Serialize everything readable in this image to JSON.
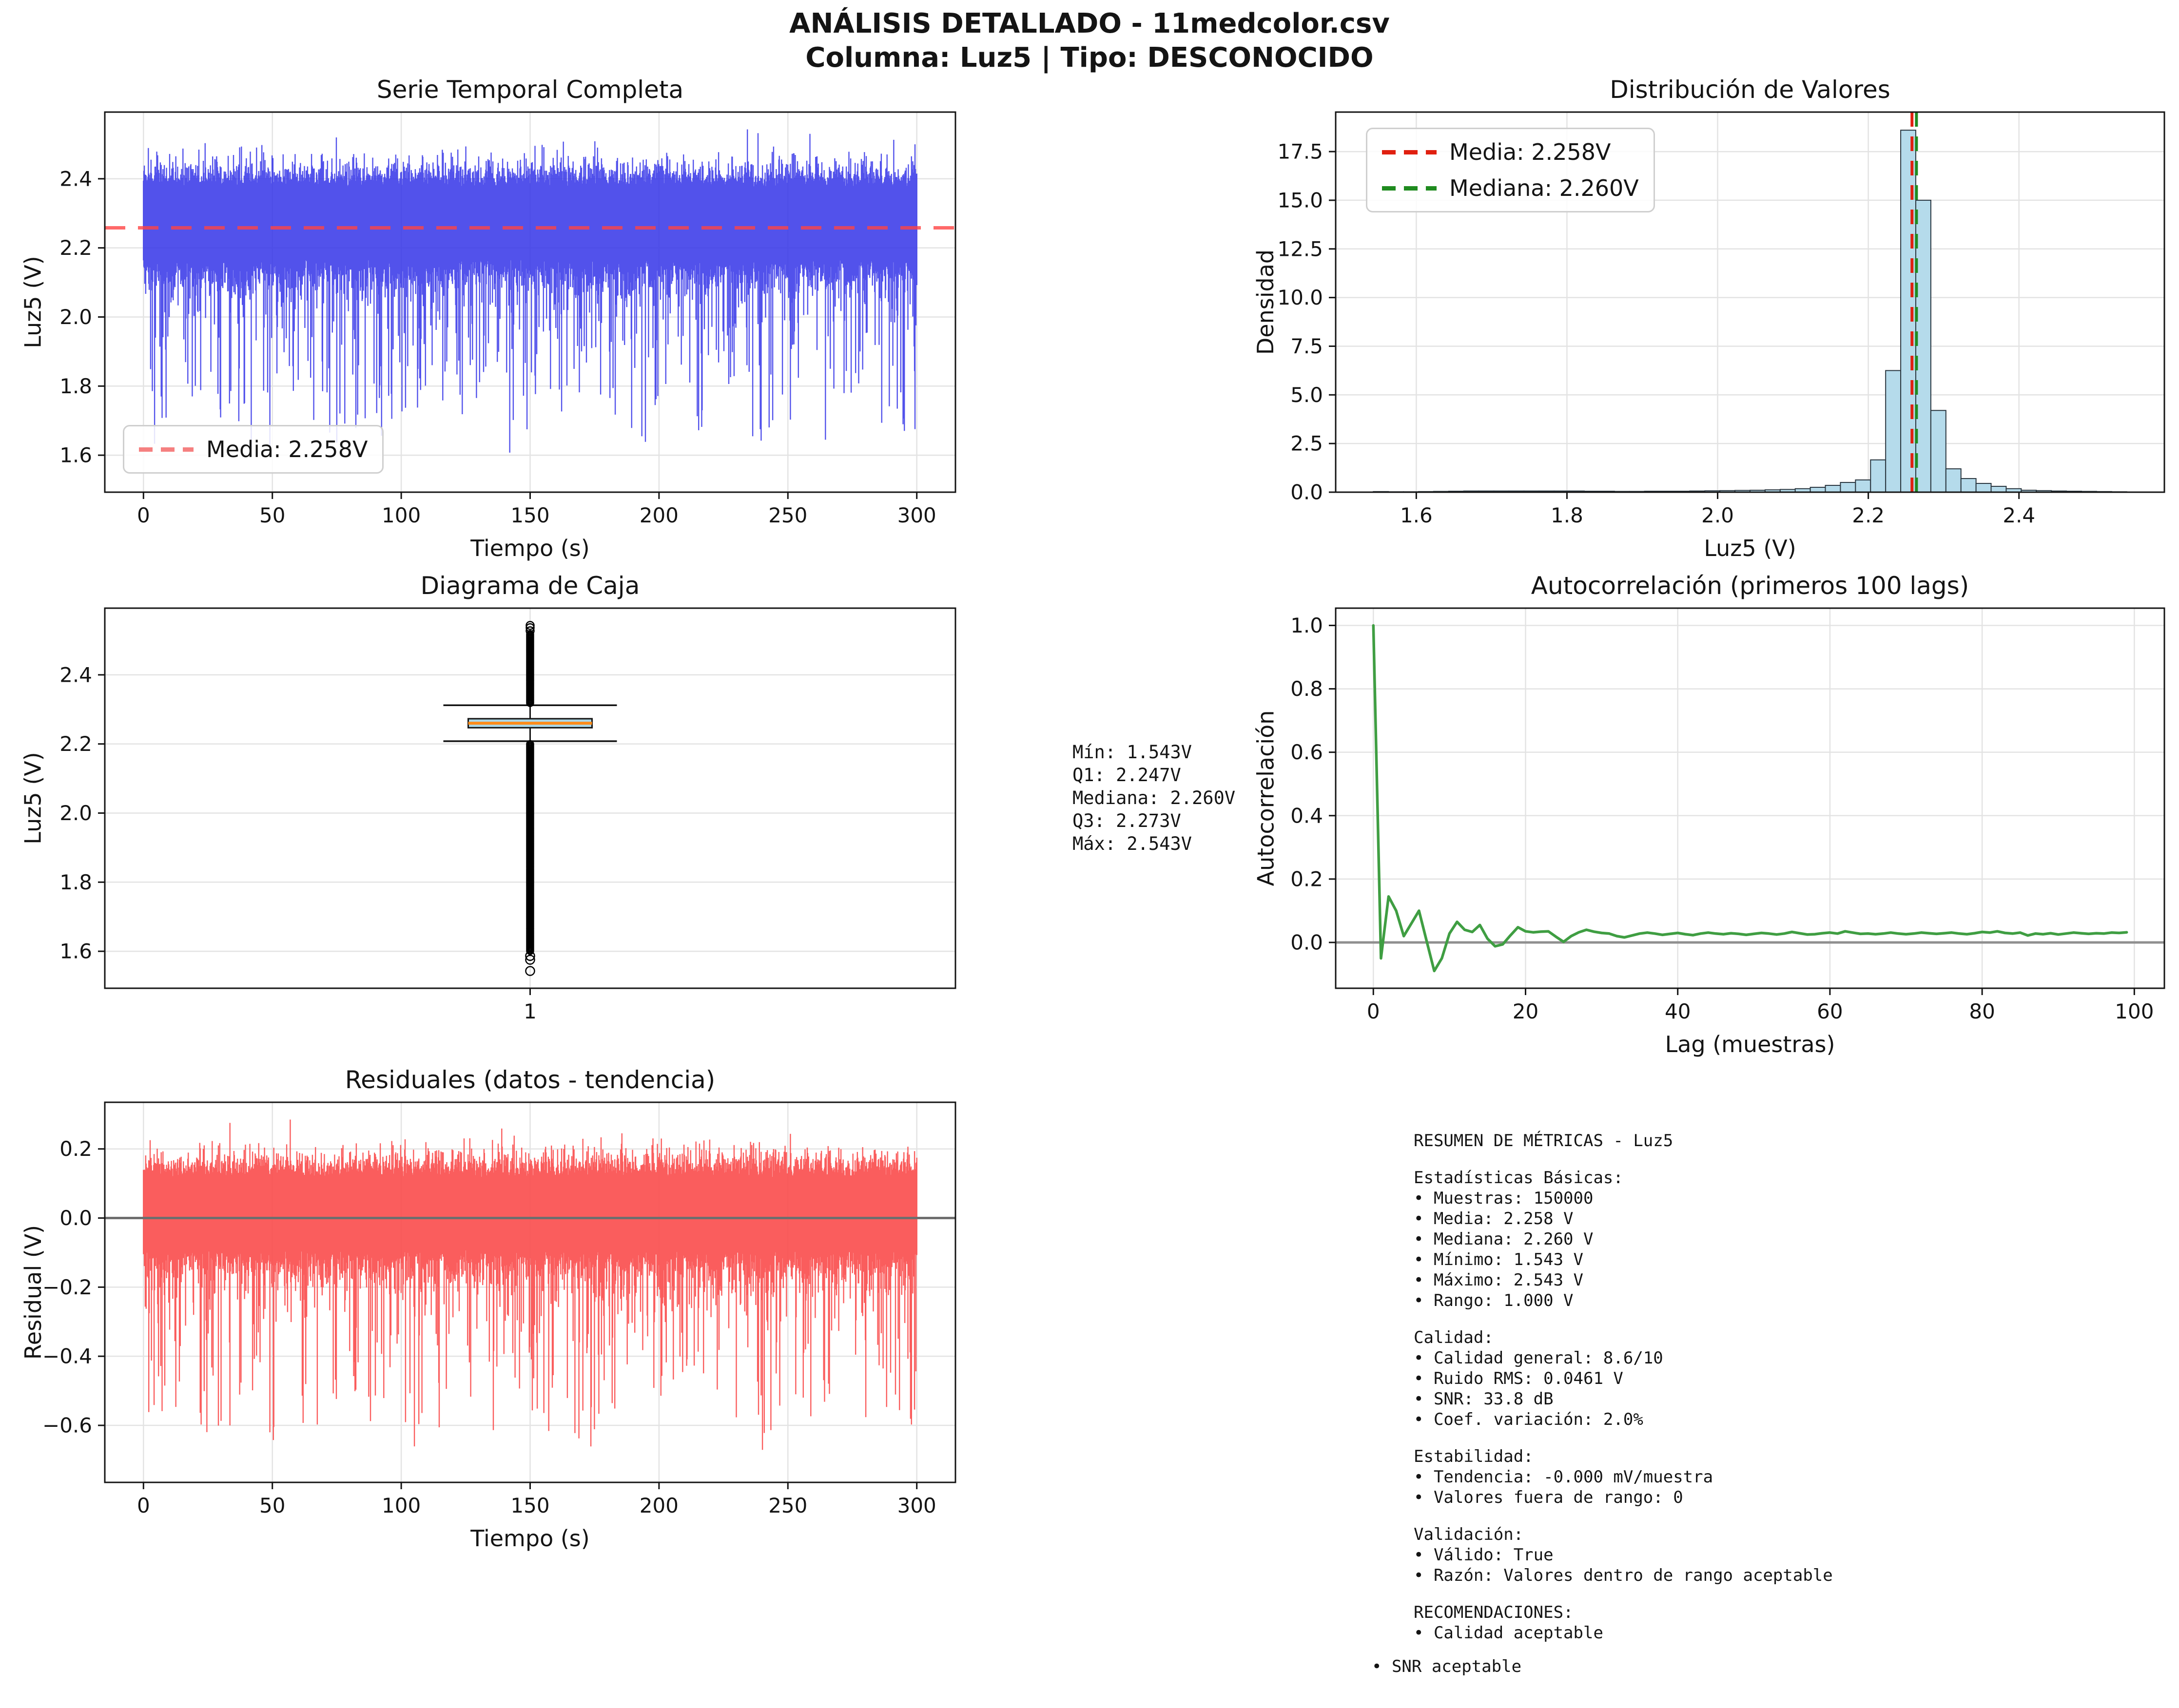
{
  "title": {
    "line1": "ANÁLISIS DETALLADO - 11medcolor.csv",
    "line2": "Columna: Luz5 | Tipo: DESCONOCIDO"
  },
  "stats_box": {
    "lines": [
      "Mín: 1.543V",
      "Q1: 2.247V",
      "Mediana: 2.260V",
      "Q3: 2.273V",
      "Máx: 2.543V"
    ]
  },
  "metrics_box": {
    "lines": [
      "RESUMEN DE MÉTRICAS - Luz5",
      "",
      "Estadísticas Básicas:",
      "• Muestras: 150000",
      "• Media: 2.258 V",
      "• Mediana: 2.260 V",
      "• Mínimo: 1.543 V",
      "• Máximo: 2.543 V",
      "• Rango: 1.000 V",
      "",
      "Calidad:",
      "• Calidad general: 8.6/10",
      "• Ruido RMS: 0.0461 V",
      "• SNR: 33.8 dB",
      "• Coef. variación: 2.0%",
      "",
      "Estabilidad:",
      "• Tendencia: -0.000 mV/muestra",
      "• Valores fuera de rango: 0",
      "",
      "Validación:",
      "• Válido: True",
      "• Razón: Valores dentro de rango aceptable",
      "",
      "RECOMENDACIONES:",
      "• Calidad aceptable"
    ],
    "outdented_line": "• SNR aceptable"
  },
  "colors": {
    "series_blue": "#3434e8",
    "mean_red": "#ff4444",
    "legend_red_soft": "#f58080",
    "hist_fill": "#b5dbeb",
    "hist_edge": "#2b3740",
    "hist_mean_red": "#e02010",
    "hist_median_green": "#1f8b1f",
    "acf_green": "#3f9e42",
    "resid_red": "#fa4b4b",
    "box_fill": "#add8e6",
    "box_median_orange": "#ff8c1a",
    "zero_gray": "#8f8f8f",
    "grid": "#e3e3e3",
    "spine": "#141414"
  },
  "chart_data": [
    {
      "id": "serie_temporal",
      "type": "line",
      "title": "Serie Temporal Completa",
      "xlabel": "Tiempo (s)",
      "ylabel": "Luz5 (V)",
      "xlim": [
        -15,
        315
      ],
      "ylim": [
        1.493,
        2.593
      ],
      "xticks": [
        {
          "v": 0,
          "label": "0"
        },
        {
          "v": 50,
          "label": "50"
        },
        {
          "v": 100,
          "label": "100"
        },
        {
          "v": 150,
          "label": "150"
        },
        {
          "v": 200,
          "label": "200"
        },
        {
          "v": 250,
          "label": "250"
        },
        {
          "v": 300,
          "label": "300"
        }
      ],
      "yticks": [
        {
          "v": 1.6,
          "label": "1.6"
        },
        {
          "v": 1.8,
          "label": "1.8"
        },
        {
          "v": 2.0,
          "label": "2.0"
        },
        {
          "v": 2.2,
          "label": "2.2"
        },
        {
          "v": 2.4,
          "label": "2.4"
        }
      ],
      "grid": true,
      "line_color": "#3434e8",
      "line_opacity": 0.85,
      "mean_line": {
        "value": 2.258,
        "color": "#ff4444",
        "style": "dashed"
      },
      "legend": {
        "position": "lower-left",
        "entries": [
          {
            "swatch": "dashed",
            "color": "#f58080",
            "label": "Media: 2.258V"
          }
        ]
      },
      "signal": {
        "seed": 20240,
        "columns": 1745,
        "t_max": 300,
        "center": 2.272,
        "sigma": 0.046,
        "env": 2.3,
        "spike_down_prob": 0.3,
        "spike_down_base": 0.05,
        "spike_down_max": 0.45,
        "spike_up_prob": 0.06,
        "spike_up_max": 0.09,
        "clip": [
          1.543,
          2.543
        ]
      }
    },
    {
      "id": "distribucion",
      "type": "bar",
      "title": "Distribución de Valores",
      "xlabel": "Luz5 (V)",
      "ylabel": "Densidad",
      "xlim": [
        1.493,
        2.593
      ],
      "ylim": [
        0,
        19.53
      ],
      "xticks": [
        {
          "v": 1.6,
          "label": "1.6"
        },
        {
          "v": 1.8,
          "label": "1.8"
        },
        {
          "v": 2.0,
          "label": "2.0"
        },
        {
          "v": 2.2,
          "label": "2.2"
        },
        {
          "v": 2.4,
          "label": "2.4"
        }
      ],
      "yticks": [
        {
          "v": 0,
          "label": "0.0"
        },
        {
          "v": 2.5,
          "label": "2.5"
        },
        {
          "v": 5,
          "label": "5.0"
        },
        {
          "v": 7.5,
          "label": "7.5"
        },
        {
          "v": 10,
          "label": "10.0"
        },
        {
          "v": 12.5,
          "label": "12.5"
        },
        {
          "v": 15,
          "label": "15.0"
        },
        {
          "v": 17.5,
          "label": "17.5"
        }
      ],
      "grid": true,
      "bins": {
        "start": 1.543,
        "width": 0.02,
        "densities": [
          0.03,
          0.02,
          0.02,
          0.03,
          0.04,
          0.05,
          0.06,
          0.06,
          0.06,
          0.06,
          0.06,
          0.06,
          0.06,
          0.06,
          0.05,
          0.05,
          0.04,
          0.04,
          0.05,
          0.05,
          0.05,
          0.06,
          0.07,
          0.08,
          0.09,
          0.1,
          0.12,
          0.14,
          0.18,
          0.25,
          0.35,
          0.5,
          0.63,
          1.66,
          6.25,
          18.6,
          15.0,
          4.2,
          1.2,
          0.7,
          0.45,
          0.3,
          0.18,
          0.1,
          0.08,
          0.06,
          0.05,
          0.04,
          0.03,
          0.02
        ]
      },
      "bar_fill": "#b5dbeb",
      "bar_edge": "#2b3740",
      "mean_line": {
        "value": 2.258,
        "color": "#e02010",
        "style": "dashed"
      },
      "median_line": {
        "value": 2.26,
        "color": "#1f8b1f",
        "style": "dashed"
      },
      "legend": {
        "position": "upper-left",
        "entries": [
          {
            "swatch": "dashed",
            "color": "#e02010",
            "label": "Media: 2.258V"
          },
          {
            "swatch": "dashed",
            "color": "#1f8b1f",
            "label": "Mediana: 2.260V"
          }
        ]
      }
    },
    {
      "id": "diagrama_caja",
      "type": "boxplot",
      "title": "Diagrama de Caja",
      "xlabel": "",
      "ylabel": "Luz5 (V)",
      "xlim": [
        0.5,
        1.5
      ],
      "ylim": [
        1.493,
        2.593
      ],
      "xticks": [
        {
          "v": 1,
          "label": "1"
        }
      ],
      "yticks": [
        {
          "v": 1.6,
          "label": "1.6"
        },
        {
          "v": 1.8,
          "label": "1.8"
        },
        {
          "v": 2.0,
          "label": "2.0"
        },
        {
          "v": 2.2,
          "label": "2.2"
        },
        {
          "v": 2.4,
          "label": "2.4"
        }
      ],
      "grid": true,
      "stats": {
        "min": 1.543,
        "q1": 2.247,
        "median": 2.26,
        "q3": 2.273,
        "max": 2.543,
        "whisker_low": 2.208,
        "whisker_high": 2.312
      },
      "outliers": {
        "below_dense": {
          "from": 1.601,
          "to": 2.2025,
          "step": 0.0035
        },
        "below_sparse": [
          1.543,
          1.5755,
          1.5865
        ],
        "above_dense": {
          "from": 2.3185,
          "to": 2.518,
          "step": 0.0035
        },
        "above_sparse": [
          2.5275,
          2.5365,
          2.543
        ]
      },
      "box_fill": "#add8e6",
      "median_color": "#ff8c1a"
    },
    {
      "id": "autocorrelacion",
      "type": "line",
      "title": "Autocorrelación (primeros 100 lags)",
      "xlabel": "Lag (muestras)",
      "ylabel": "Autocorrelación",
      "xlim": [
        -4.95,
        103.95
      ],
      "ylim": [
        -0.1445,
        1.0545
      ],
      "xticks": [
        {
          "v": 0,
          "label": "0"
        },
        {
          "v": 20,
          "label": "20"
        },
        {
          "v": 40,
          "label": "40"
        },
        {
          "v": 60,
          "label": "60"
        },
        {
          "v": 80,
          "label": "80"
        },
        {
          "v": 100,
          "label": "100"
        }
      ],
      "yticks": [
        {
          "v": 0,
          "label": "0.0"
        },
        {
          "v": 0.2,
          "label": "0.2"
        },
        {
          "v": 0.4,
          "label": "0.4"
        },
        {
          "v": 0.6,
          "label": "0.6"
        },
        {
          "v": 0.8,
          "label": "0.8"
        },
        {
          "v": 1.0,
          "label": "1.0"
        }
      ],
      "grid": true,
      "line_color": "#3f9e42",
      "zero_line_color": "#8f8f8f",
      "values": [
        1.0,
        -0.05,
        0.145,
        0.1,
        0.02,
        0.06,
        0.1,
        0.005,
        -0.09,
        -0.05,
        0.028,
        0.065,
        0.04,
        0.033,
        0.055,
        0.012,
        -0.012,
        -0.006,
        0.022,
        0.048,
        0.035,
        0.032,
        0.034,
        0.035,
        0.018,
        0.002,
        0.02,
        0.032,
        0.04,
        0.034,
        0.03,
        0.028,
        0.02,
        0.016,
        0.022,
        0.028,
        0.031,
        0.028,
        0.024,
        0.027,
        0.03,
        0.026,
        0.023,
        0.028,
        0.031,
        0.028,
        0.026,
        0.029,
        0.027,
        0.024,
        0.027,
        0.03,
        0.028,
        0.025,
        0.028,
        0.033,
        0.029,
        0.025,
        0.026,
        0.029,
        0.031,
        0.028,
        0.035,
        0.031,
        0.027,
        0.028,
        0.026,
        0.028,
        0.031,
        0.028,
        0.026,
        0.028,
        0.031,
        0.029,
        0.027,
        0.029,
        0.031,
        0.028,
        0.026,
        0.029,
        0.033,
        0.031,
        0.035,
        0.03,
        0.028,
        0.031,
        0.022,
        0.028,
        0.026,
        0.029,
        0.025,
        0.028,
        0.031,
        0.029,
        0.027,
        0.029,
        0.028,
        0.031,
        0.03,
        0.032
      ]
    },
    {
      "id": "residuales",
      "type": "line",
      "title": "Residuales (datos - tendencia)",
      "xlabel": "Tiempo (s)",
      "ylabel": "Residual (V)",
      "xlim": [
        -15,
        315
      ],
      "ylim": [
        -0.765,
        0.335
      ],
      "xticks": [
        {
          "v": 0,
          "label": "0"
        },
        {
          "v": 50,
          "label": "50"
        },
        {
          "v": 100,
          "label": "100"
        },
        {
          "v": 150,
          "label": "150"
        },
        {
          "v": 200,
          "label": "200"
        },
        {
          "v": 250,
          "label": "250"
        },
        {
          "v": 300,
          "label": "300"
        }
      ],
      "yticks": [
        {
          "v": 0.2,
          "label": "0.2"
        },
        {
          "v": 0.0,
          "label": "0.0"
        },
        {
          "v": -0.2,
          "label": "−0.2"
        },
        {
          "v": -0.4,
          "label": "−0.4"
        },
        {
          "v": -0.6,
          "label": "−0.6"
        }
      ],
      "grid": true,
      "line_color": "#fa4b4b",
      "line_opacity": 0.9,
      "zero_line_color": "#6e6e6e",
      "signal": {
        "seed": 77717,
        "columns": 1745,
        "t_max": 300,
        "center": 0.013,
        "sigma": 0.046,
        "env": 2.3,
        "spike_down_prob": 0.3,
        "spike_down_base": 0.05,
        "spike_down_max": 0.45,
        "spike_up_prob": 0.06,
        "spike_up_max": 0.09,
        "clip": [
          -0.715,
          0.285
        ]
      }
    }
  ]
}
